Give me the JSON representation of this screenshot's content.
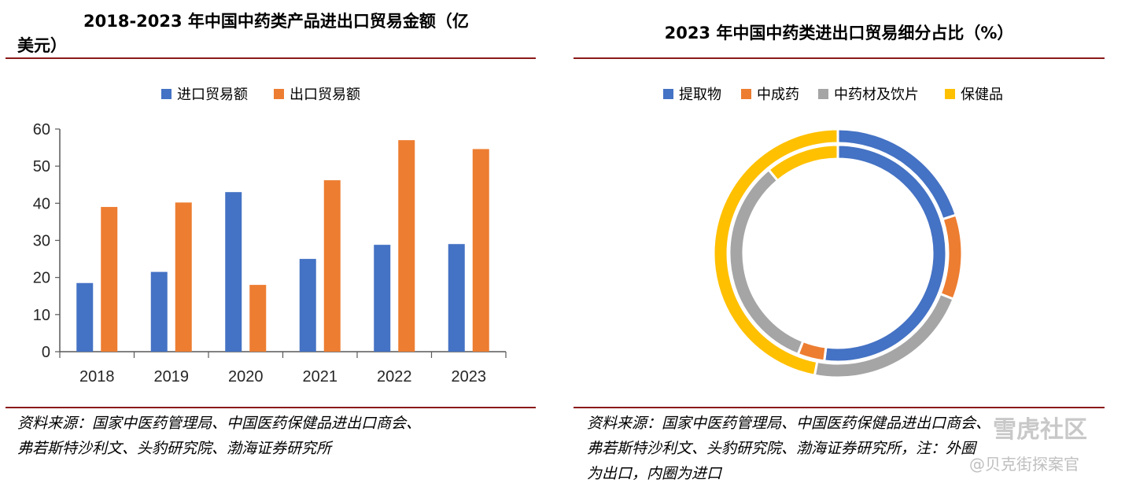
{
  "left_panel": {
    "title": "2018-2023 年中国中药类产品进出口贸易金额（亿美元）",
    "title_line1": "2018-2023 年中国中药类产品进出口贸易金额（亿",
    "title_line2": "美元）",
    "source_line1": "资料来源：国家中医药管理局、中国医药保健品进出口商会、",
    "source_line2": "弗若斯特沙利文、头豹研究院、渤海证券研究所"
  },
  "right_panel": {
    "title": "2023 年中国中药类进出口贸易细分占比（%）",
    "source_line1": "资料来源：国家中医药管理局、中国医药保健品进出口商会、",
    "source_line2": "弗若斯特沙利文、头豹研究院、渤海证券研究所，注：外圈",
    "source_line3": "为出口，内圈为进口"
  },
  "colors": {
    "blue": "#4472C4",
    "orange": "#ED7D31",
    "gray": "#A5A5A5",
    "yellow": "#FFC000",
    "rule": "#8B1A1A"
  },
  "chart_data": [
    {
      "type": "bar",
      "title": "2018-2023 年中国中药类产品进出口贸易金额（亿美元）",
      "categories": [
        "2018",
        "2019",
        "2020",
        "2021",
        "2022",
        "2023"
      ],
      "series": [
        {
          "name": "进口贸易额",
          "color": "#4472C4",
          "values": [
            18.5,
            21.5,
            43,
            25,
            28.8,
            29
          ]
        },
        {
          "name": "出口贸易额",
          "color": "#ED7D31",
          "values": [
            39,
            40.2,
            18,
            46.2,
            57,
            54.6
          ]
        }
      ],
      "xlabel": "",
      "ylabel": "",
      "ylim": [
        0,
        60
      ],
      "yticks": [
        "0",
        "10",
        "20",
        "30",
        "40",
        "50",
        "60"
      ],
      "grid": false,
      "legend": "top-center"
    },
    {
      "type": "pie",
      "subtype": "donut",
      "title": "2023 年中国中药类进出口贸易细分占比（%）",
      "categories": [
        "提取物",
        "中成药",
        "中药材及饮片",
        "保健品"
      ],
      "colors": [
        "#4472C4",
        "#ED7D31",
        "#A5A5A5",
        "#FFC000"
      ],
      "series": [
        {
          "name": "出口",
          "ring": "outer",
          "values": [
            20,
            11,
            22,
            47
          ]
        },
        {
          "name": "进口",
          "ring": "inner",
          "values": [
            52,
            4,
            33,
            11
          ]
        }
      ],
      "legend": "top-center"
    }
  ],
  "watermarks": {
    "line1": "雪虎社区",
    "line2": "@贝克街探案官"
  }
}
